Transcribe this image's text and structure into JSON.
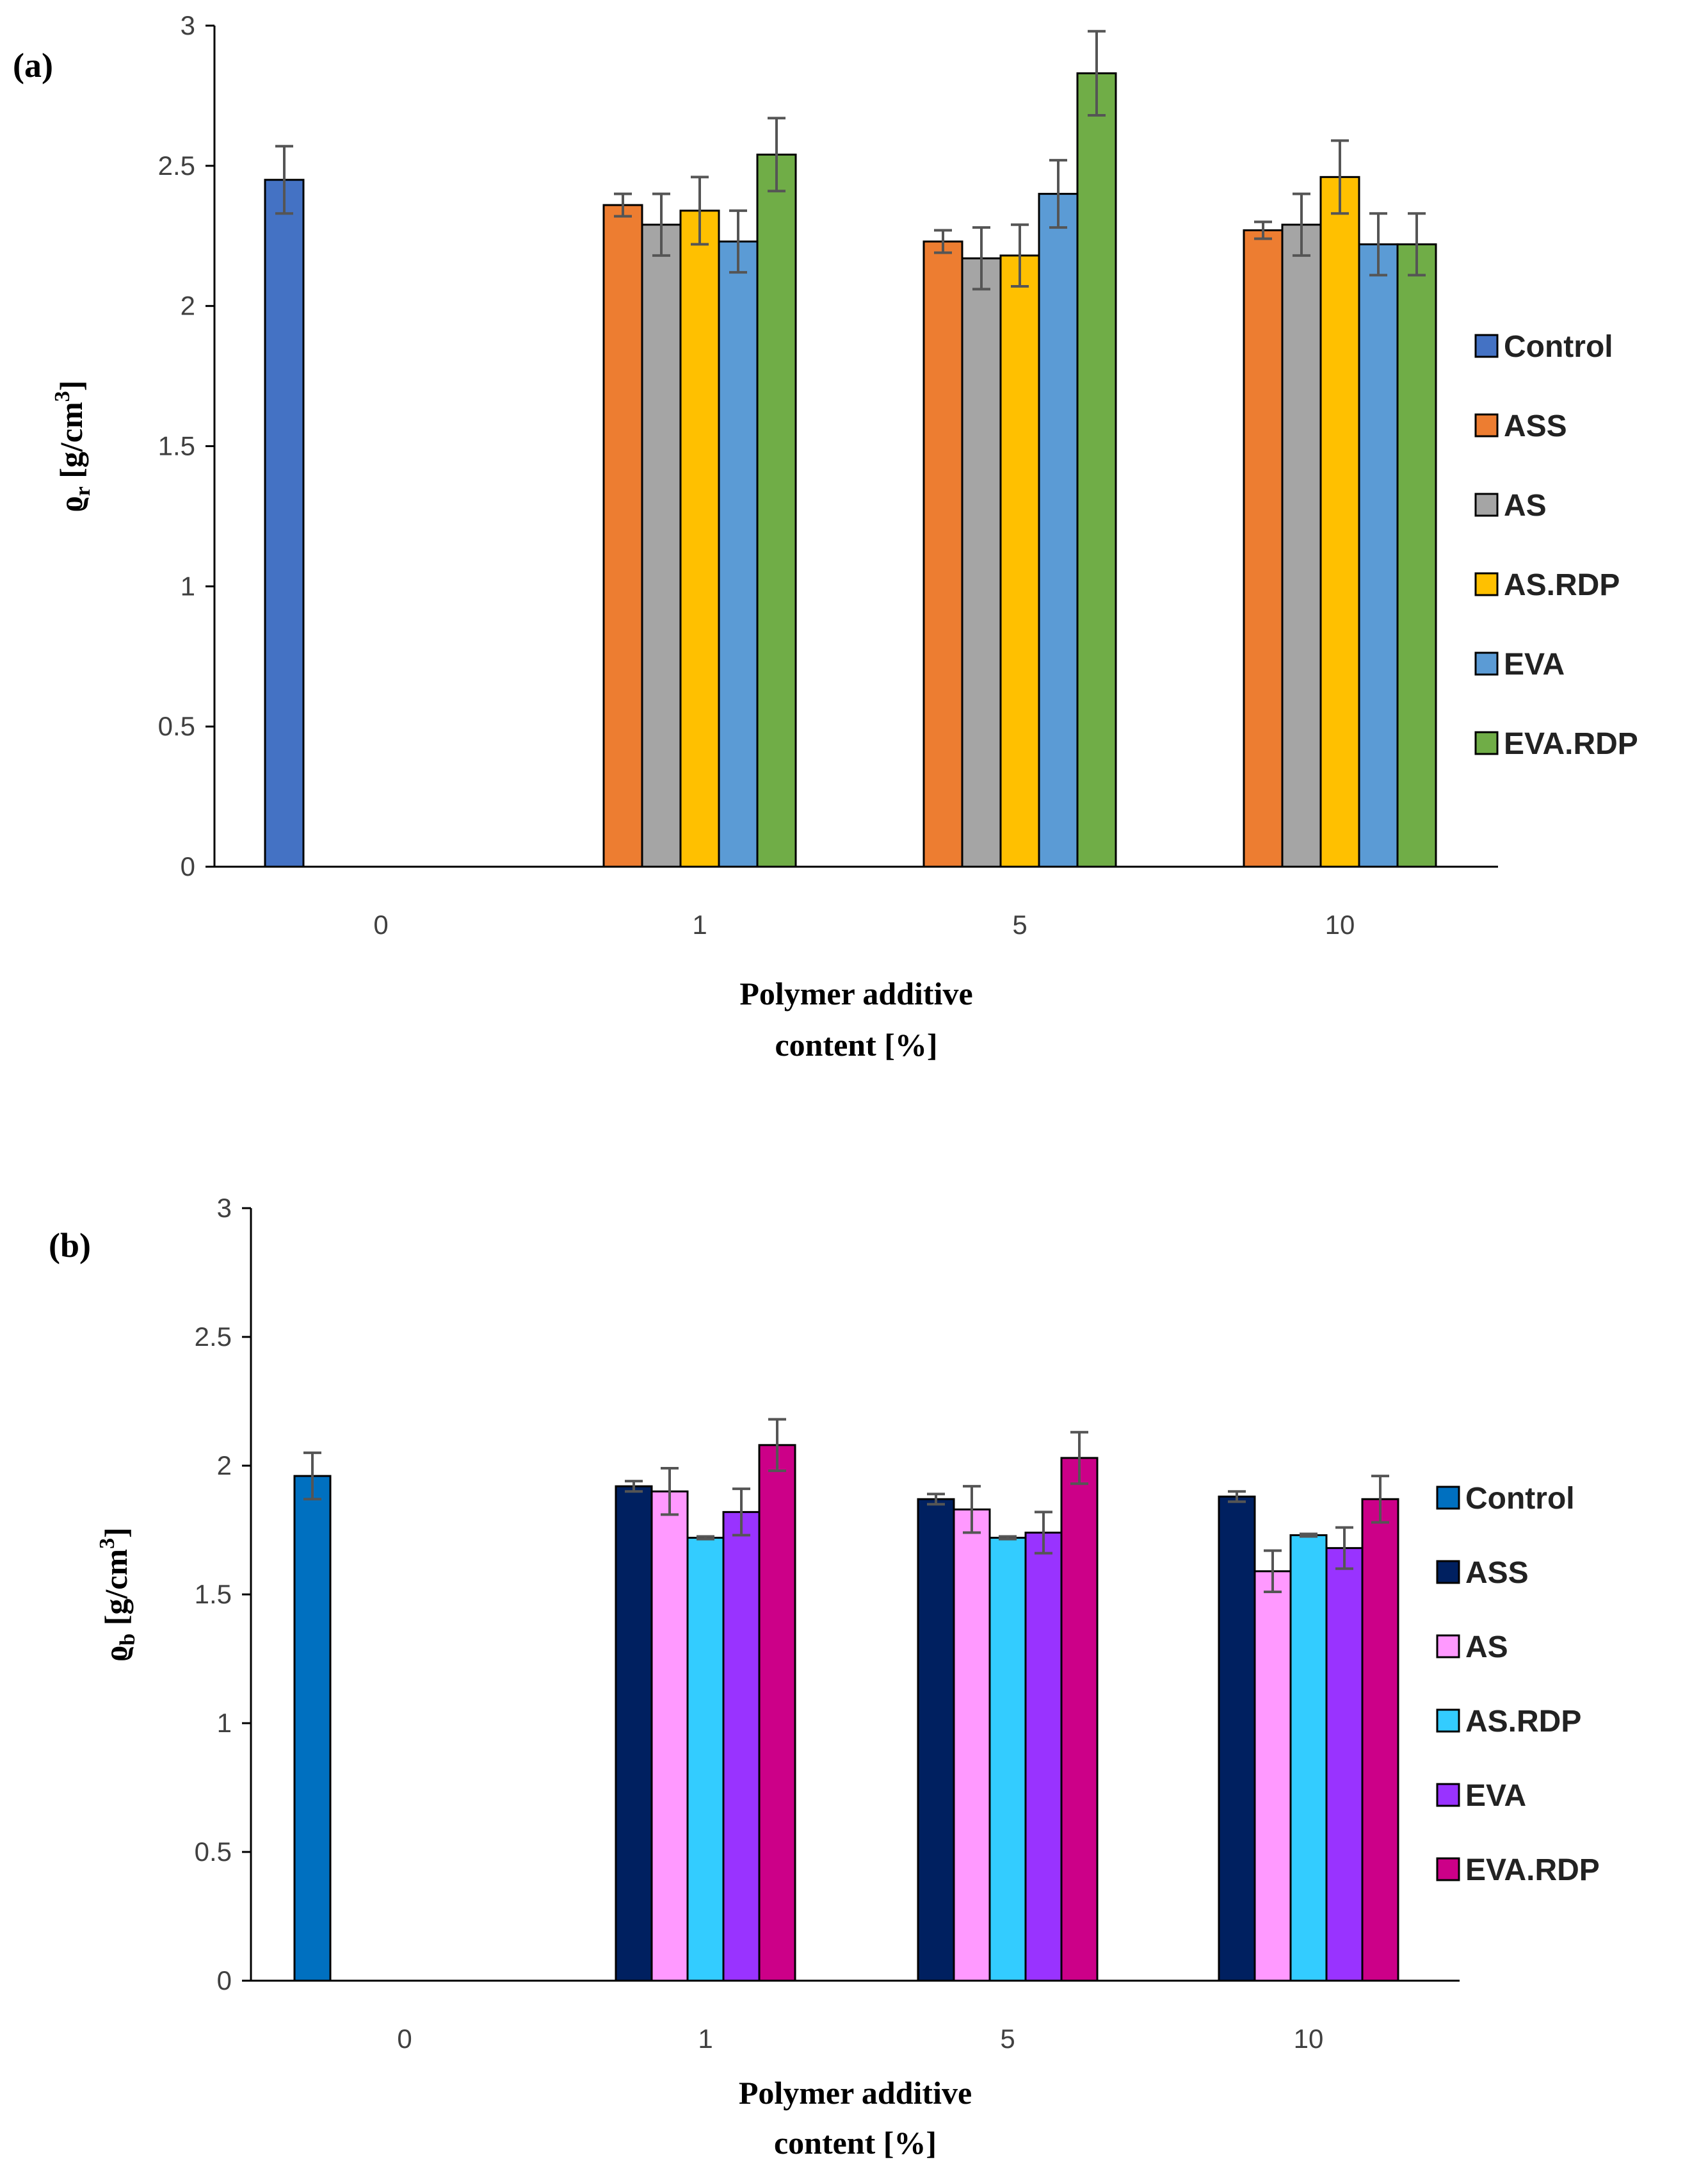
{
  "chart_data": [
    {
      "panel_label": "(a)",
      "type": "bar",
      "categories": [
        "0",
        "1",
        "5",
        "10"
      ],
      "xlabel_line1": "Polymer additive",
      "xlabel_line2": "content [%]",
      "ylabel_symbol": "ϱ",
      "ylabel_subscript": "r",
      "ylabel_unit": " [g/cm",
      "ylabel_unit_sup": "3",
      "ylabel_unit_close": "]",
      "ylim": [
        0,
        3
      ],
      "yticks": [
        "0",
        "0.5",
        "1",
        "1.5",
        "2",
        "2.5",
        "3"
      ],
      "series": [
        {
          "name": "Control",
          "color": "#4472C4",
          "values": [
            2.45,
            null,
            null,
            null
          ],
          "errors": [
            0.12,
            null,
            null,
            null
          ]
        },
        {
          "name": "ASS",
          "color": "#ED7D31",
          "values": [
            null,
            2.36,
            2.23,
            2.27
          ],
          "errors": [
            null,
            0.04,
            0.04,
            0.03
          ]
        },
        {
          "name": "AS",
          "color": "#A5A5A5",
          "values": [
            null,
            2.29,
            2.17,
            2.29
          ],
          "errors": [
            null,
            0.11,
            0.11,
            0.11
          ]
        },
        {
          "name": "AS.RDP",
          "color": "#FFC000",
          "values": [
            null,
            2.34,
            2.18,
            2.46
          ],
          "errors": [
            null,
            0.12,
            0.11,
            0.13
          ]
        },
        {
          "name": "EVA",
          "color": "#5B9BD5",
          "values": [
            null,
            2.23,
            2.4,
            2.22
          ],
          "errors": [
            null,
            0.11,
            0.12,
            0.11
          ]
        },
        {
          "name": "EVA.RDP",
          "color": "#70AD47",
          "values": [
            null,
            2.54,
            2.83,
            2.22
          ],
          "errors": [
            null,
            0.13,
            0.15,
            0.11
          ]
        }
      ]
    },
    {
      "panel_label": "(b)",
      "type": "bar",
      "categories": [
        "0",
        "1",
        "5",
        "10"
      ],
      "xlabel_line1": "Polymer additive",
      "xlabel_line2": "content [%]",
      "ylabel_symbol": "ϱ",
      "ylabel_subscript": "b",
      "ylabel_unit": " [g/cm",
      "ylabel_unit_sup": "3",
      "ylabel_unit_close": "]",
      "ylim": [
        0,
        3
      ],
      "yticks": [
        "0",
        "0.5",
        "1",
        "1.5",
        "2",
        "2.5",
        "3"
      ],
      "series": [
        {
          "name": "Control",
          "color": "#0070C0",
          "values": [
            1.96,
            null,
            null,
            null
          ],
          "errors": [
            0.09,
            null,
            null,
            null
          ]
        },
        {
          "name": "ASS",
          "color": "#002060",
          "values": [
            null,
            1.92,
            1.87,
            1.88
          ],
          "errors": [
            null,
            0.02,
            0.02,
            0.02
          ]
        },
        {
          "name": "AS",
          "color": "#FF99FF",
          "values": [
            null,
            1.9,
            1.83,
            1.59
          ],
          "errors": [
            null,
            0.09,
            0.09,
            0.08
          ]
        },
        {
          "name": "AS.RDP",
          "color": "#33CCFF",
          "values": [
            null,
            1.72,
            1.72,
            1.73
          ],
          "errors": [
            null,
            0.005,
            0.005,
            0.005
          ]
        },
        {
          "name": "EVA",
          "color": "#9933FF",
          "values": [
            null,
            1.82,
            1.74,
            1.68
          ],
          "errors": [
            null,
            0.09,
            0.08,
            0.08
          ]
        },
        {
          "name": "EVA.RDP",
          "color": "#CC0088",
          "values": [
            null,
            2.08,
            2.03,
            1.87
          ],
          "errors": [
            null,
            0.1,
            0.1,
            0.09
          ]
        }
      ]
    }
  ]
}
